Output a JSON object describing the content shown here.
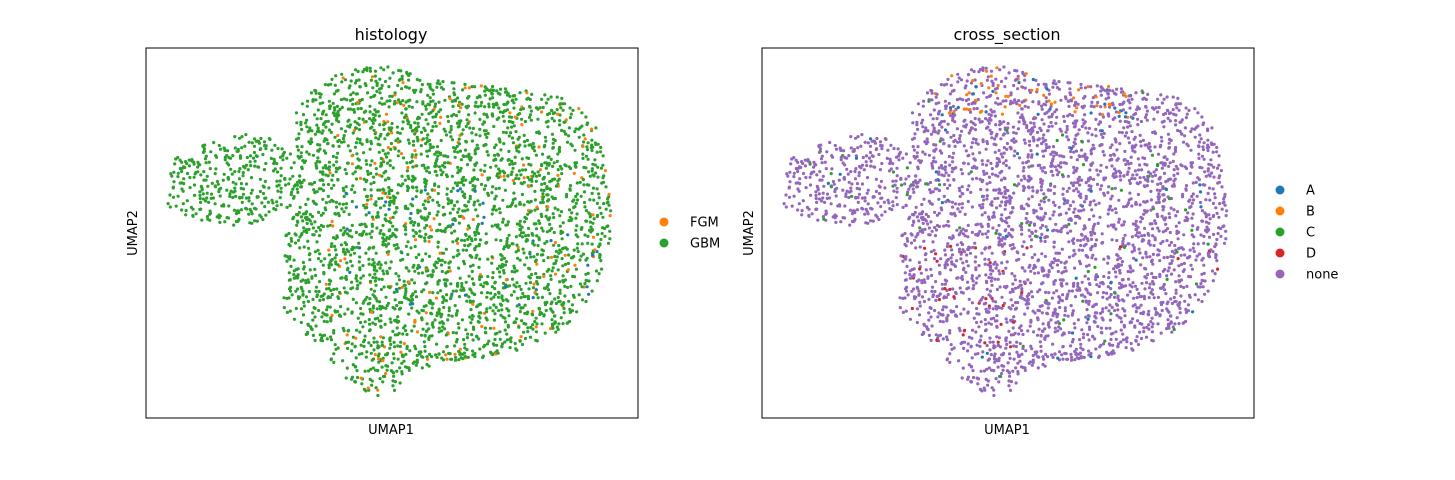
{
  "chart_data": [
    {
      "type": "scatter",
      "title": "histology",
      "xlabel": "UMAP1",
      "ylabel": "UMAP2",
      "grid": false,
      "ticks": false,
      "legend_placement": "right",
      "legend": [
        {
          "name": "FGM",
          "color": "#ff7f0e"
        },
        {
          "name": "GBM",
          "color": "#2ca02c"
        }
      ],
      "point_count_estimate": 4000,
      "composition": {
        "FGM": 0.06,
        "GBM": 0.91,
        "blue_unlabeled": 0.03
      }
    },
    {
      "type": "scatter",
      "title": "cross_section",
      "xlabel": "UMAP1",
      "ylabel": "UMAP2",
      "grid": false,
      "ticks": false,
      "legend_placement": "right",
      "legend": [
        {
          "name": "A",
          "color": "#1f77b4"
        },
        {
          "name": "B",
          "color": "#ff7f0e"
        },
        {
          "name": "C",
          "color": "#2ca02c"
        },
        {
          "name": "D",
          "color": "#d62728"
        },
        {
          "name": "none",
          "color": "#9467bd"
        }
      ],
      "point_count_estimate": 4000,
      "composition": {
        "A": 0.02,
        "B": 0.03,
        "C": 0.03,
        "D": 0.02,
        "none": 0.9
      }
    }
  ]
}
